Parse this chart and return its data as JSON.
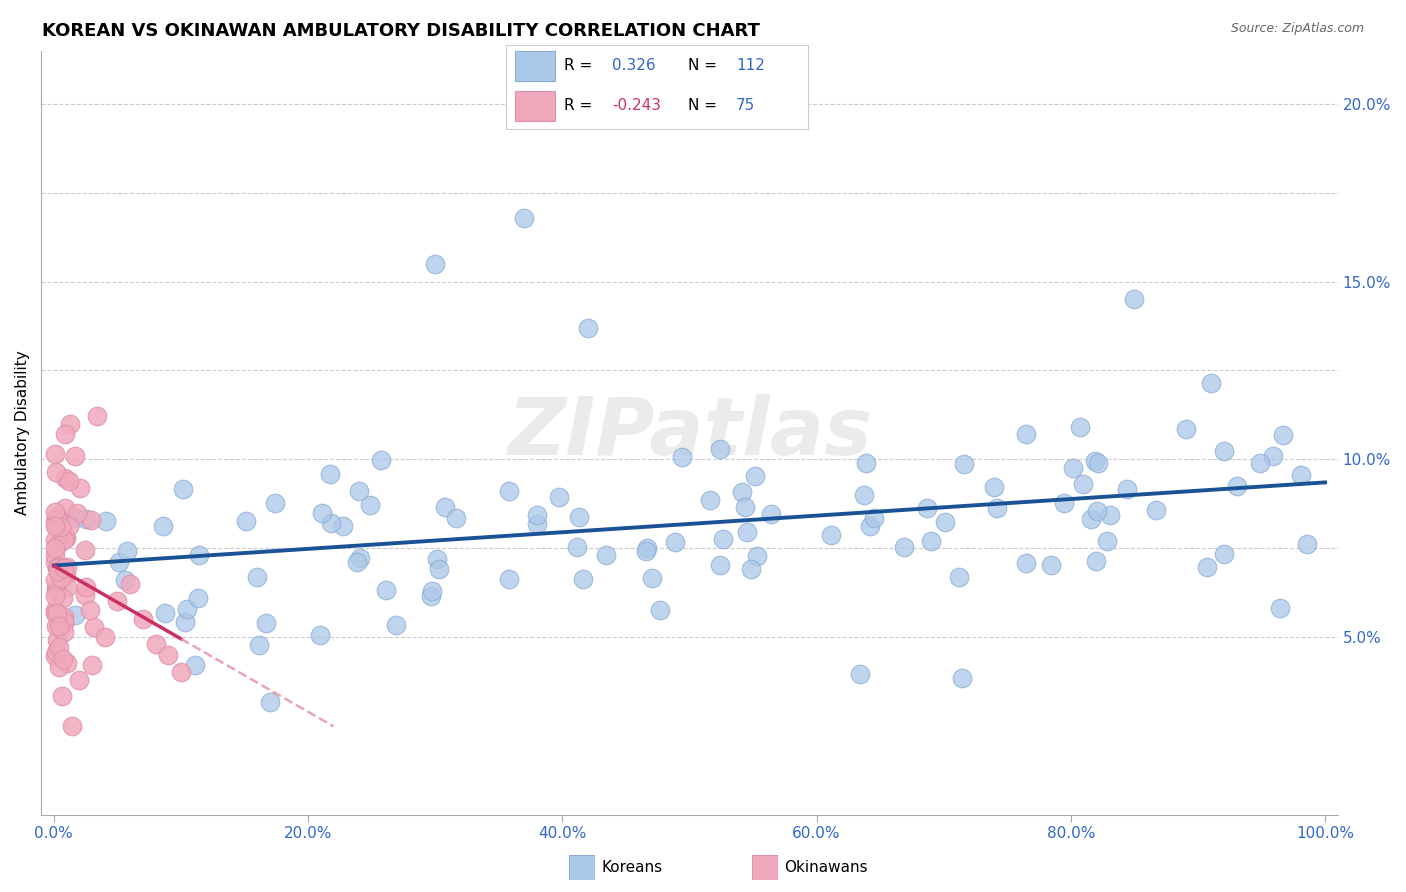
{
  "title": "KOREAN VS OKINAWAN AMBULATORY DISABILITY CORRELATION CHART",
  "source": "Source: ZipAtlas.com",
  "ylabel_text": "Ambulatory Disability",
  "korean_R": 0.326,
  "korean_N": 112,
  "okinawan_R": -0.243,
  "okinawan_N": 75,
  "xlim": [
    -0.01,
    1.01
  ],
  "ylim": [
    0.0,
    0.215
  ],
  "xtick_vals": [
    0.0,
    0.2,
    0.4,
    0.6,
    0.8,
    1.0
  ],
  "xtick_labels": [
    "0.0%",
    "20.0%",
    "40.0%",
    "60.0%",
    "80.0%",
    "100.0%"
  ],
  "ytick_vals": [
    0.05,
    0.1,
    0.15,
    0.2
  ],
  "ytick_labels": [
    "5.0%",
    "10.0%",
    "15.0%",
    "20.0%"
  ],
  "hgrid_vals": [
    0.05,
    0.075,
    0.1,
    0.125,
    0.15,
    0.175,
    0.2
  ],
  "korean_color": "#aac8e8",
  "korean_edge_color": "#88aad4",
  "korean_line_color": "#1a5296",
  "okinawan_color": "#f0a8bc",
  "okinawan_edge_color": "#e090a8",
  "okinawan_line_color": "#cc3060",
  "okinawan_line_dash_color": "#e08090",
  "background_color": "#ffffff",
  "grid_color": "#cccccc",
  "title_fontsize": 13,
  "tick_label_color": "#3366cc",
  "source_color": "#666666",
  "legend_all_color": "#3366cc",
  "legend_R_okinawan_color": "#cc3366",
  "watermark_color": "#d8d8d8"
}
